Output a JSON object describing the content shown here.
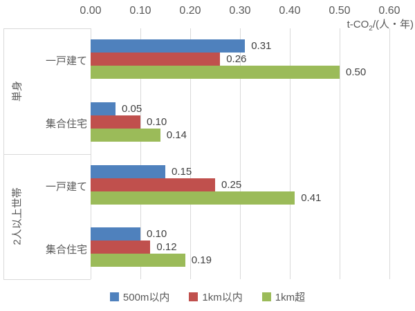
{
  "chart_data": {
    "type": "bar",
    "orientation": "horizontal",
    "axis_title": {
      "prefix": "t-CO",
      "sub": "2",
      "suffix": "/(人・年)"
    },
    "x_ticks": [
      "0.00",
      "0.10",
      "0.20",
      "0.30",
      "0.40",
      "0.50",
      "0.60"
    ],
    "xlim": [
      0,
      0.6
    ],
    "grid": true,
    "legend_position": "bottom",
    "groups": [
      {
        "label": "単身",
        "span": [
          0,
          1
        ]
      },
      {
        "label": "2人以上世帯",
        "span": [
          2,
          3
        ]
      }
    ],
    "categories": [
      "一戸建て",
      "集合住宅",
      "一戸建て",
      "集合住宅"
    ],
    "series": [
      {
        "name": "500m以内",
        "color": "#4f81bd",
        "values": [
          0.31,
          0.05,
          0.15,
          0.1
        ]
      },
      {
        "name": "1km以内",
        "color": "#c0504d",
        "values": [
          0.26,
          0.1,
          0.25,
          0.12
        ]
      },
      {
        "name": "1km超",
        "color": "#9bbb59",
        "values": [
          0.5,
          0.14,
          0.41,
          0.19
        ]
      }
    ],
    "value_labels": [
      [
        "0.31",
        "0.26",
        "0.50"
      ],
      [
        "0.05",
        "0.10",
        "0.14"
      ],
      [
        "0.15",
        "0.25",
        "0.41"
      ],
      [
        "0.10",
        "0.12",
        "0.19"
      ]
    ],
    "colors": {
      "gridline": "#d9d9d9",
      "axis_text": "#595959",
      "value_label_text": "#404040"
    }
  }
}
